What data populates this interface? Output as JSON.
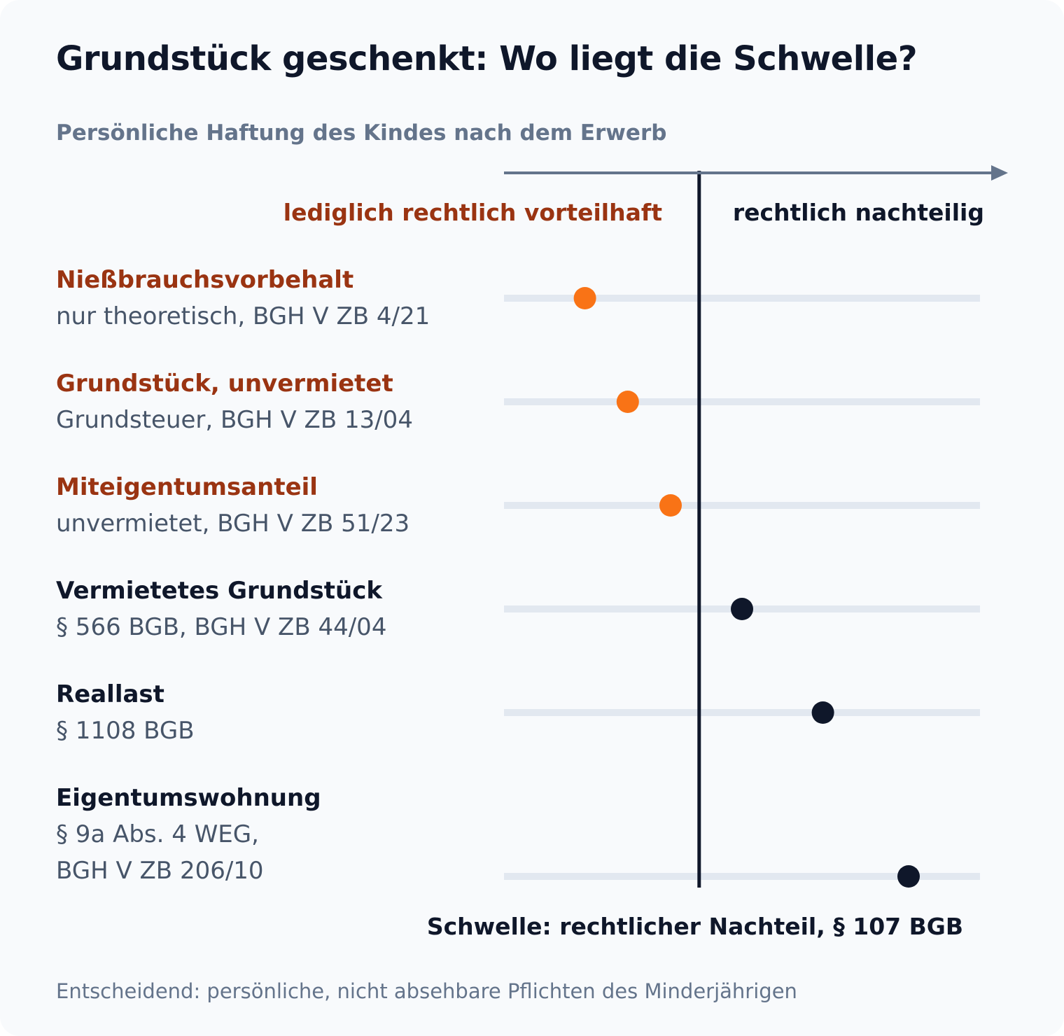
{
  "title": "Grundstück geschenkt: Wo liegt die Schwelle?",
  "subtitle": "Persönliche Haftung des Kindes nach dem Erwerb",
  "footnote": "Entscheidend: persönliche, nicht absehbare Pflichten des Minderjährigen",
  "colors": {
    "advantage": "#f97316",
    "advantage_text": "#9a3412",
    "disadvantage": "#0f172a",
    "track": "#e2e8f0",
    "axis": "#64748b",
    "muted": "#475569"
  },
  "chart_data": {
    "type": "scatter",
    "axis_label_left": "lediglich rechtlich vorteilhaft",
    "axis_label_right": "rechtlich nachteilig",
    "threshold_label": "Schwelle: rechtlicher Nachteil, § 107 BGB",
    "xlim": [
      0,
      100
    ],
    "threshold": 41,
    "categories": [
      {
        "name": "Nießbrauchsvorbehalt",
        "detail": [
          "nur theoretisch, BGH V ZB 4/21"
        ],
        "value": 17,
        "side": "vorteilhaft"
      },
      {
        "name": "Grundstück, unvermietet",
        "detail": [
          "Grundsteuer, BGH V ZB 13/04"
        ],
        "value": 26,
        "side": "vorteilhaft"
      },
      {
        "name": "Miteigentumsanteil",
        "detail": [
          "unvermietet, BGH V ZB 51/23"
        ],
        "value": 35,
        "side": "vorteilhaft"
      },
      {
        "name": "Vermietetes Grundstück",
        "detail": [
          "§ 566 BGB, BGH V ZB 44/04"
        ],
        "value": 50,
        "side": "nachteilig"
      },
      {
        "name": "Reallast",
        "detail": [
          "§ 1108 BGB"
        ],
        "value": 67,
        "side": "nachteilig"
      },
      {
        "name": "Eigentumswohnung",
        "detail": [
          "§ 9a Abs. 4 WEG,",
          "BGH V ZB 206/10"
        ],
        "value": 85,
        "side": "nachteilig"
      }
    ]
  }
}
